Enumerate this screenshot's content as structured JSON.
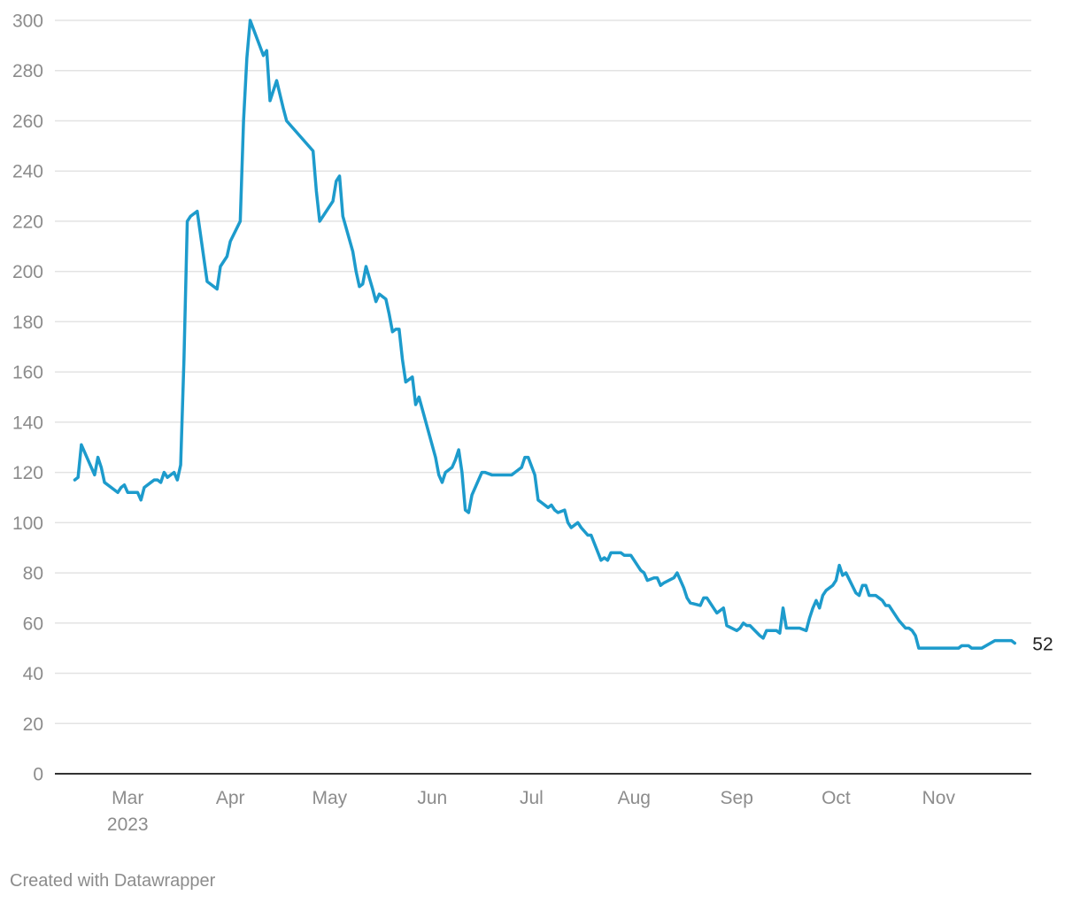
{
  "chart_data": {
    "type": "line",
    "title": "",
    "xlabel": "",
    "ylabel": "",
    "ylim": [
      0,
      300
    ],
    "y_ticks": [
      0,
      20,
      40,
      60,
      80,
      100,
      120,
      140,
      160,
      180,
      200,
      220,
      240,
      260,
      280,
      300
    ],
    "x_range": [
      "2023-02-07",
      "2023-11-29"
    ],
    "x_ticks": [
      {
        "date": "2023-03-01",
        "label": "Mar",
        "sublabel": "2023"
      },
      {
        "date": "2023-04-01",
        "label": "Apr",
        "sublabel": ""
      },
      {
        "date": "2023-05-01",
        "label": "May",
        "sublabel": ""
      },
      {
        "date": "2023-06-01",
        "label": "Jun",
        "sublabel": ""
      },
      {
        "date": "2023-07-01",
        "label": "Jul",
        "sublabel": ""
      },
      {
        "date": "2023-08-01",
        "label": "Aug",
        "sublabel": ""
      },
      {
        "date": "2023-09-01",
        "label": "Sep",
        "sublabel": ""
      },
      {
        "date": "2023-10-01",
        "label": "Oct",
        "sublabel": ""
      },
      {
        "date": "2023-11-01",
        "label": "Nov",
        "sublabel": ""
      }
    ],
    "grid": true,
    "line_color": "#1d9bcc",
    "end_label": "52",
    "series": [
      {
        "x": [
          "2023-02-13",
          "2023-02-14",
          "2023-02-15",
          "2023-02-17",
          "2023-02-19",
          "2023-02-20",
          "2023-02-21",
          "2023-02-22",
          "2023-02-26",
          "2023-02-27",
          "2023-02-28",
          "2023-03-01",
          "2023-03-04",
          "2023-03-05",
          "2023-03-06",
          "2023-03-08",
          "2023-03-09",
          "2023-03-10",
          "2023-03-11",
          "2023-03-12",
          "2023-03-13",
          "2023-03-15",
          "2023-03-16",
          "2023-03-17",
          "2023-03-18",
          "2023-03-19",
          "2023-03-20",
          "2023-03-22",
          "2023-03-25",
          "2023-03-28",
          "2023-03-29",
          "2023-03-31",
          "2023-04-01",
          "2023-04-04",
          "2023-04-05",
          "2023-04-06",
          "2023-04-07",
          "2023-04-11",
          "2023-04-12",
          "2023-04-13",
          "2023-04-15",
          "2023-04-17",
          "2023-04-18",
          "2023-04-26",
          "2023-04-27",
          "2023-04-28",
          "2023-05-02",
          "2023-05-03",
          "2023-05-04",
          "2023-05-05",
          "2023-05-08",
          "2023-05-09",
          "2023-05-10",
          "2023-05-11",
          "2023-05-12",
          "2023-05-14",
          "2023-05-15",
          "2023-05-16",
          "2023-05-18",
          "2023-05-19",
          "2023-05-20",
          "2023-05-21",
          "2023-05-22",
          "2023-05-23",
          "2023-05-24",
          "2023-05-26",
          "2023-05-27",
          "2023-05-28",
          "2023-06-02",
          "2023-06-03",
          "2023-06-04",
          "2023-06-05",
          "2023-06-07",
          "2023-06-08",
          "2023-06-09",
          "2023-06-10",
          "2023-06-11",
          "2023-06-12",
          "2023-06-13",
          "2023-06-16",
          "2023-06-17",
          "2023-06-19",
          "2023-06-20",
          "2023-06-21",
          "2023-06-25",
          "2023-06-26",
          "2023-06-27",
          "2023-06-28",
          "2023-06-29",
          "2023-06-30",
          "2023-07-02",
          "2023-07-03",
          "2023-07-04",
          "2023-07-06",
          "2023-07-07",
          "2023-07-08",
          "2023-07-09",
          "2023-07-11",
          "2023-07-12",
          "2023-07-13",
          "2023-07-15",
          "2023-07-16",
          "2023-07-18",
          "2023-07-19",
          "2023-07-22",
          "2023-07-23",
          "2023-07-24",
          "2023-07-25",
          "2023-07-27",
          "2023-07-28",
          "2023-07-29",
          "2023-07-31",
          "2023-08-02",
          "2023-08-03",
          "2023-08-04",
          "2023-08-05",
          "2023-08-07",
          "2023-08-08",
          "2023-08-09",
          "2023-08-10",
          "2023-08-13",
          "2023-08-14",
          "2023-08-15",
          "2023-08-16",
          "2023-08-17",
          "2023-08-18",
          "2023-08-21",
          "2023-08-22",
          "2023-08-23",
          "2023-08-25",
          "2023-08-26",
          "2023-08-27",
          "2023-08-28",
          "2023-08-29",
          "2023-09-01",
          "2023-09-02",
          "2023-09-03",
          "2023-09-04",
          "2023-09-05",
          "2023-09-08",
          "2023-09-09",
          "2023-09-10",
          "2023-09-11",
          "2023-09-12",
          "2023-09-13",
          "2023-09-14",
          "2023-09-15",
          "2023-09-16",
          "2023-09-20",
          "2023-09-22",
          "2023-09-23",
          "2023-09-24",
          "2023-09-25",
          "2023-09-26",
          "2023-09-27",
          "2023-09-28",
          "2023-09-30",
          "2023-10-01",
          "2023-10-02",
          "2023-10-03",
          "2023-10-04",
          "2023-10-07",
          "2023-10-08",
          "2023-10-09",
          "2023-10-10",
          "2023-10-11",
          "2023-10-13",
          "2023-10-14",
          "2023-10-15",
          "2023-10-16",
          "2023-10-17",
          "2023-10-20",
          "2023-10-22",
          "2023-10-23",
          "2023-10-24",
          "2023-10-25",
          "2023-10-26",
          "2023-10-31",
          "2023-11-06",
          "2023-11-07",
          "2023-11-08",
          "2023-11-09",
          "2023-11-10",
          "2023-11-11",
          "2023-11-13",
          "2023-11-14",
          "2023-11-18",
          "2023-11-22",
          "2023-11-23",
          "2023-11-24"
        ],
        "y": [
          117,
          118,
          131,
          125,
          119,
          126,
          122,
          116,
          112,
          114,
          115,
          112,
          112,
          109,
          114,
          116,
          117,
          117,
          116,
          120,
          118,
          120,
          117,
          123,
          165,
          220,
          222,
          224,
          196,
          193,
          202,
          206,
          212,
          220,
          260,
          285,
          300,
          286,
          288,
          268,
          276,
          265,
          260,
          248,
          232,
          220,
          228,
          236,
          238,
          222,
          208,
          200,
          194,
          195,
          202,
          193,
          188,
          191,
          189,
          183,
          176,
          177,
          177,
          165,
          156,
          158,
          147,
          150,
          126,
          119,
          116,
          120,
          122,
          125,
          129,
          120,
          105,
          104,
          111,
          120,
          120,
          119,
          119,
          119,
          119,
          120,
          121,
          122,
          126,
          126,
          119,
          109,
          108,
          106,
          107,
          105,
          104,
          105,
          100,
          98,
          100,
          98,
          95,
          95,
          85,
          86,
          85,
          88,
          88,
          88,
          87,
          87,
          83,
          81,
          80,
          77,
          78,
          78,
          75,
          76,
          78,
          80,
          77,
          74,
          70,
          68,
          67,
          70,
          70,
          66,
          64,
          65,
          66,
          59,
          57,
          58,
          60,
          59,
          59,
          55,
          54,
          57,
          57,
          57,
          57,
          56,
          66,
          58,
          58,
          57,
          62,
          66,
          69,
          66,
          71,
          73,
          75,
          77,
          83,
          79,
          80,
          72,
          71,
          75,
          75,
          71,
          71,
          70,
          69,
          67,
          67,
          61,
          58,
          58,
          57,
          55,
          50,
          50,
          50,
          50,
          51,
          51,
          51,
          50,
          50,
          50,
          53,
          53,
          53,
          52
        ]
      }
    ]
  },
  "footer": {
    "credit": "Created with Datawrapper"
  }
}
